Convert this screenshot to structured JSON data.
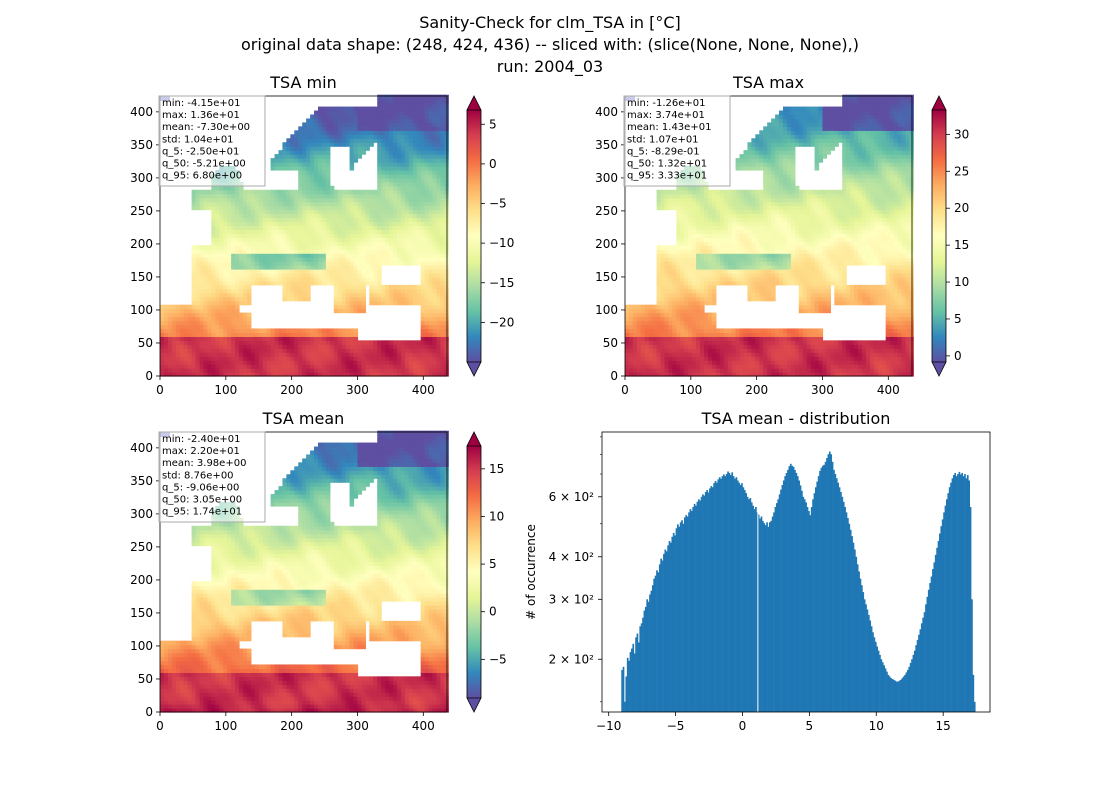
{
  "figure": {
    "title_lines": [
      "Sanity-Check for clm_TSA in [°C]",
      "original data shape: (248, 424, 436) -- sliced with: (slice(None, None, None),)",
      "run: 2004_03"
    ]
  },
  "colors": {
    "spectral": [
      "#5e4fa2",
      "#3288bd",
      "#66c2a5",
      "#abdda4",
      "#e6f598",
      "#ffffbf",
      "#fee08b",
      "#fdae61",
      "#f46d43",
      "#d53e4f",
      "#9e0142"
    ],
    "bar": "#1f77b4"
  },
  "chart_data": [
    {
      "type": "heatmap",
      "title": "TSA min",
      "x_ticks": [
        "0",
        "100",
        "200",
        "300",
        "400"
      ],
      "y_ticks": [
        "0",
        "50",
        "100",
        "150",
        "200",
        "250",
        "300",
        "350",
        "400"
      ],
      "xlim": [
        0,
        436
      ],
      "ylim": [
        0,
        424
      ],
      "color_range": [
        -25.0,
        6.8
      ],
      "colorbar_ticks": [
        "5",
        "0",
        "−5",
        "−10",
        "−15",
        "−20"
      ],
      "stats": [
        "min: -4.15e+01",
        "max: 1.36e+01",
        "mean: -7.30e+00",
        "std: 1.04e+01",
        "q_5: -2.50e+01",
        "q_50: -5.21e+00",
        "q_95: 6.80e+00"
      ]
    },
    {
      "type": "heatmap",
      "title": "TSA max",
      "x_ticks": [
        "0",
        "100",
        "200",
        "300",
        "400"
      ],
      "y_ticks": [
        "0",
        "50",
        "100",
        "150",
        "200",
        "250",
        "300",
        "350",
        "400"
      ],
      "xlim": [
        0,
        436
      ],
      "ylim": [
        0,
        424
      ],
      "color_range": [
        -0.829,
        33.3
      ],
      "colorbar_ticks": [
        "30",
        "25",
        "20",
        "15",
        "10",
        "5",
        "0"
      ],
      "stats": [
        "min: -1.26e+01",
        "max: 3.74e+01",
        "mean: 1.43e+01",
        "std: 1.07e+01",
        "q_5: -8.29e-01",
        "q_50: 1.32e+01",
        "q_95: 3.33e+01"
      ]
    },
    {
      "type": "heatmap",
      "title": "TSA mean",
      "x_ticks": [
        "0",
        "100",
        "200",
        "300",
        "400"
      ],
      "y_ticks": [
        "0",
        "50",
        "100",
        "150",
        "200",
        "250",
        "300",
        "350",
        "400"
      ],
      "xlim": [
        0,
        436
      ],
      "ylim": [
        0,
        424
      ],
      "color_range": [
        -9.06,
        17.4
      ],
      "colorbar_ticks": [
        "15",
        "10",
        "5",
        "0",
        "−5"
      ],
      "stats": [
        "min: -2.40e+01",
        "max: 2.20e+01",
        "mean: 3.98e+00",
        "std: 8.76e+00",
        "q_5: -9.06e+00",
        "q_50: 3.05e+00",
        "q_95: 1.74e+01"
      ]
    },
    {
      "type": "bar",
      "title": "TSA mean - distribution",
      "ylabel": "# of occurrence",
      "yscale": "log",
      "xlim": [
        -10.5,
        18.5
      ],
      "ylim": [
        140,
        930
      ],
      "x_ticks": [
        "−10",
        "−5",
        "0",
        "5",
        "10",
        "15"
      ],
      "y_ticks": [
        "2 × 10²",
        "3 × 10²",
        "4 × 10²",
        "6 × 10²"
      ],
      "bin_range": [
        -9.06,
        17.4
      ],
      "counts": [
        186,
        190,
        150,
        178,
        202,
        198,
        210,
        215,
        222,
        208,
        232,
        238,
        224,
        250,
        255,
        265,
        278,
        285,
        300,
        295,
        310,
        318,
        330,
        345,
        352,
        365,
        360,
        380,
        395,
        390,
        408,
        420,
        415,
        432,
        445,
        440,
        458,
        470,
        462,
        485,
        498,
        490,
        505,
        512,
        500,
        522,
        530,
        525,
        540,
        552,
        545,
        560,
        572,
        565,
        580,
        590,
        585,
        600,
        610,
        605,
        620,
        628,
        618,
        635,
        645,
        640,
        658,
        668,
        660,
        675,
        685,
        678,
        690,
        698,
        690,
        700,
        712,
        705,
        695,
        708,
        690,
        678,
        685,
        670,
        660,
        650,
        658,
        640,
        628,
        615,
        600,
        590,
        595,
        578,
        565,
        552,
        560,
        540,
        532,
        518,
        525,
        510,
        502,
        495,
        505,
        490,
        505,
        510,
        525,
        540,
        560,
        575,
        590,
        610,
        630,
        650,
        670,
        690,
        705,
        720,
        738,
        750,
        740,
        735,
        720,
        705,
        690,
        670,
        648,
        625,
        600,
        590,
        578,
        560,
        545,
        530,
        560,
        590,
        615,
        640,
        665,
        690,
        715,
        730,
        740,
        745,
        760,
        780,
        800,
        815,
        800,
        760,
        720,
        700,
        680,
        660,
        640,
        620,
        600,
        580,
        560,
        540,
        520,
        500,
        480,
        460,
        440,
        420,
        400,
        380,
        362,
        345,
        330,
        315,
        300,
        290,
        280,
        270,
        260,
        250,
        240,
        232,
        225,
        218,
        212,
        206,
        200,
        196,
        192,
        188,
        184,
        180,
        178,
        176,
        175,
        174,
        173,
        172,
        172,
        173,
        174,
        176,
        178,
        180,
        183,
        186,
        190,
        195,
        200,
        206,
        212,
        220,
        228,
        236,
        245,
        255,
        265,
        275,
        290,
        305,
        320,
        335,
        350,
        368,
        385,
        405,
        425,
        445,
        468,
        492,
        515,
        540,
        565,
        590,
        615,
        640,
        660,
        680,
        695,
        705,
        690,
        700,
        710,
        698,
        705,
        690,
        700,
        680,
        695,
        670,
        560,
        300,
        180,
        150
      ]
    }
  ]
}
